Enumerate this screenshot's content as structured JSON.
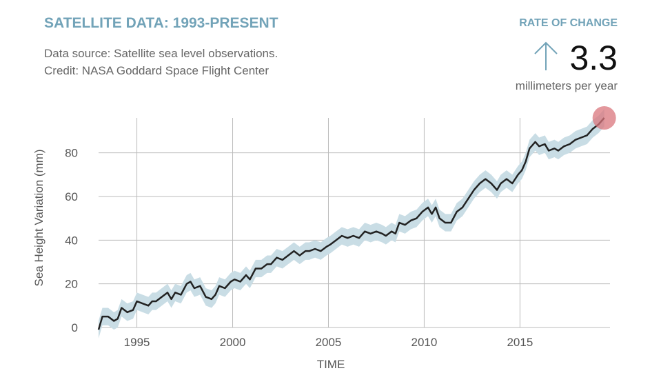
{
  "chart_data": {
    "type": "line",
    "title": "SATELLITE DATA: 1993-PRESENT",
    "subtitle": [
      "Data source: Satellite sea level observations.",
      "Credit: NASA Goddard Space Flight Center"
    ],
    "rate": {
      "label": "RATE OF CHANGE",
      "value": 3.3,
      "unit": "millimeters per year"
    },
    "xlabel": "TIME",
    "ylabel": "Sea Height Variation (mm)",
    "xlim": [
      1993,
      2019.7
    ],
    "ylim": [
      0,
      96
    ],
    "xticks": [
      1995,
      2000,
      2005,
      2010,
      2015
    ],
    "yticks": [
      0,
      20,
      40,
      60,
      80
    ],
    "grid": true,
    "uncertainty": 4,
    "band_color": "#c9dde5",
    "highlight_color": "#d9757c",
    "x": [
      1993.0,
      1993.2,
      1993.5,
      1993.8,
      1994.0,
      1994.2,
      1994.5,
      1994.8,
      1995.0,
      1995.3,
      1995.6,
      1995.8,
      1996.0,
      1996.3,
      1996.6,
      1996.8,
      1997.0,
      1997.3,
      1997.6,
      1997.8,
      1998.0,
      1998.3,
      1998.6,
      1998.9,
      1999.1,
      1999.3,
      1999.6,
      1999.9,
      2000.1,
      2000.4,
      2000.7,
      2000.9,
      2001.2,
      2001.5,
      2001.8,
      2002.0,
      2002.3,
      2002.6,
      2002.9,
      2003.2,
      2003.5,
      2003.8,
      2004.0,
      2004.3,
      2004.6,
      2004.9,
      2005.1,
      2005.4,
      2005.7,
      2006.0,
      2006.3,
      2006.6,
      2006.9,
      2007.2,
      2007.5,
      2007.8,
      2008.0,
      2008.3,
      2008.5,
      2008.7,
      2009.0,
      2009.3,
      2009.6,
      2009.9,
      2010.2,
      2010.4,
      2010.6,
      2010.8,
      2011.1,
      2011.4,
      2011.7,
      2012.0,
      2012.3,
      2012.6,
      2012.9,
      2013.2,
      2013.5,
      2013.8,
      2014.0,
      2014.3,
      2014.6,
      2014.9,
      2015.1,
      2015.3,
      2015.5,
      2015.8,
      2016.0,
      2016.3,
      2016.5,
      2016.8,
      2017.0,
      2017.3,
      2017.6,
      2017.9,
      2018.2,
      2018.5,
      2018.8,
      2019.1,
      2019.4
    ],
    "series": [
      {
        "name": "Sea height",
        "color": "#222222",
        "values": [
          -1,
          5,
          5,
          3,
          4,
          9,
          7,
          8,
          12,
          11,
          10,
          12,
          12,
          14,
          16,
          13,
          16,
          15,
          20,
          21,
          18,
          19,
          14,
          13,
          15,
          19,
          18,
          21,
          22,
          21,
          24,
          22,
          27,
          27,
          29,
          29,
          32,
          31,
          33,
          35,
          33,
          35,
          35,
          36,
          35,
          37,
          38,
          40,
          42,
          41,
          42,
          41,
          44,
          43,
          44,
          43,
          42,
          44,
          43,
          48,
          47,
          49,
          50,
          53,
          55,
          52,
          55,
          50,
          48,
          48,
          53,
          55,
          59,
          63,
          66,
          68,
          66,
          63,
          66,
          68,
          66,
          70,
          72,
          76,
          82,
          85,
          83,
          84,
          81,
          82,
          81,
          83,
          84,
          86,
          87,
          88,
          91,
          93,
          96
        ]
      }
    ]
  }
}
